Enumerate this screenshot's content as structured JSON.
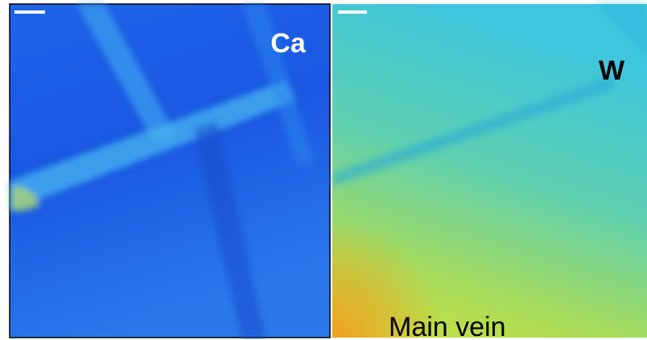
{
  "panels": [
    {
      "label": "Ca"
    },
    {
      "label": "W",
      "annotation": "Main vein"
    }
  ]
}
